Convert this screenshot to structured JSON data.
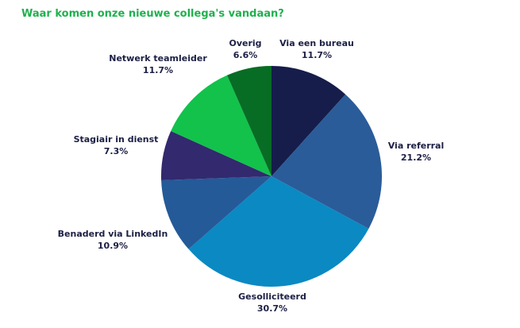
{
  "title": "Waar komen onze nieuwe collega's vandaan?",
  "chart_data": {
    "type": "pie",
    "title": "Waar komen onze nieuwe collega's vandaan?",
    "start_angle": "12 o'clock, clockwise",
    "categories": [
      "Via een bureau",
      "Via referral",
      "Gesolliciteerd",
      "Benaderd via LinkedIn",
      "Stagiair in dienst",
      "Netwerk teamleider",
      "Overig"
    ],
    "values": [
      11.7,
      21.2,
      30.7,
      10.9,
      7.3,
      11.7,
      6.6
    ],
    "value_labels": [
      "11.7%",
      "21.2%",
      "30.7%",
      "10.9%",
      "7.3%",
      "11.7%",
      "6.6%"
    ],
    "colors": [
      "#161d4a",
      "#2a5c99",
      "#0b89c2",
      "#245a98",
      "#33296e",
      "#12c24b",
      "#086d24"
    ],
    "legend": "none (outside labels)"
  }
}
